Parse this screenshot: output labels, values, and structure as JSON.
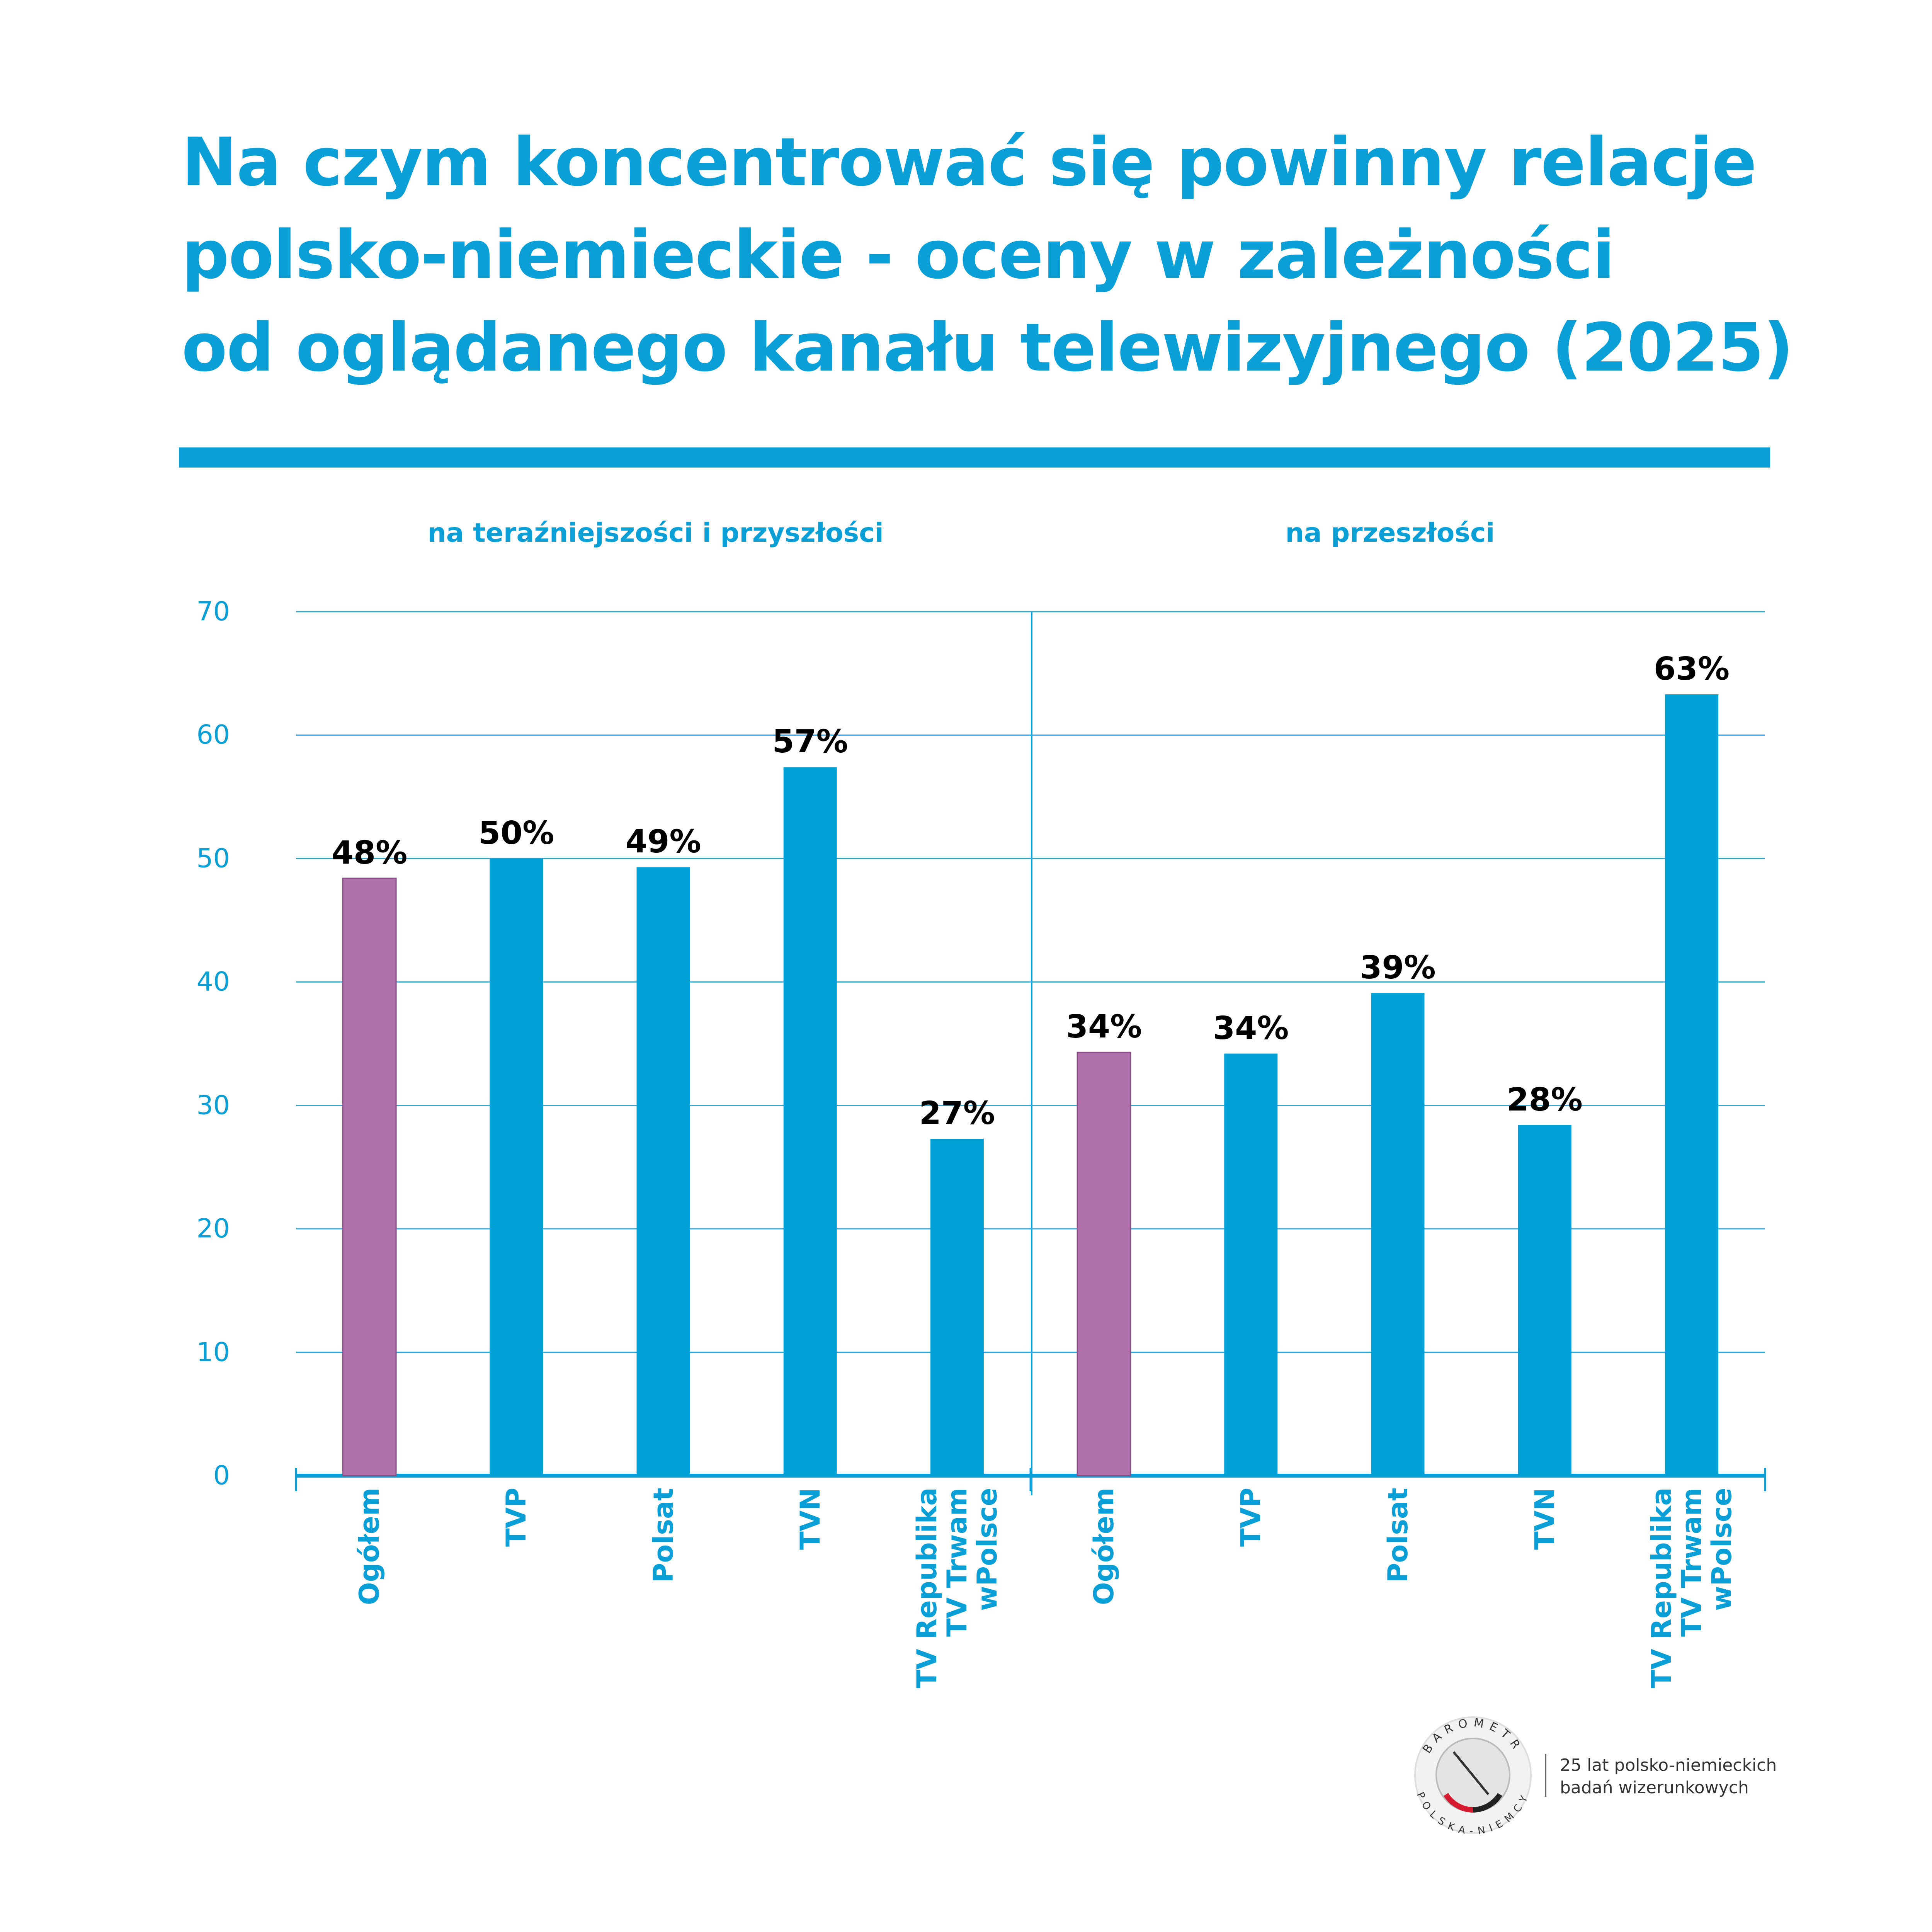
{
  "chart_data": {
    "type": "bar",
    "title": "Na czym koncentrować się powinny relacje\npolsko-niemieckie - oceny w zależności\nod oglądanego kanału telewizyjnego (2025)",
    "ylim": [
      0,
      70
    ],
    "yticks": [
      0,
      10,
      20,
      30,
      40,
      50,
      60,
      70
    ],
    "grid": true,
    "panels": [
      {
        "title": "na teraźniejszości i przyszłości",
        "categories": [
          "Ogółem",
          "TVP",
          "Polsat",
          "TVN",
          "TV Republika\nTV Trwam\nwPolsce"
        ],
        "values": [
          48.4,
          50,
          49.3,
          57.4,
          27.3
        ],
        "value_labels": [
          "48%",
          "50%",
          "49%",
          "57%",
          "27%"
        ],
        "colors": [
          "#b070ab",
          "#009fd6",
          "#009fd6",
          "#009fd6",
          "#009fd6"
        ]
      },
      {
        "title": "na przeszłości",
        "categories": [
          "Ogółem",
          "TVP",
          "Polsat",
          "TVN",
          "TV Republika\nTV Trwam\nwPolsce"
        ],
        "values": [
          34.3,
          34.2,
          39.1,
          28.4,
          63.3
        ],
        "value_labels": [
          "34%",
          "34%",
          "39%",
          "28%",
          "63%"
        ],
        "colors": [
          "#b070ab",
          "#009fd6",
          "#009fd6",
          "#009fd6",
          "#009fd6"
        ]
      }
    ]
  },
  "footer": {
    "logo_top": "BAROMETR",
    "logo_bottom": "POLSKA-NIEMCY",
    "text": "25 lat polsko-niemieckich\nbadań wizerunkowych"
  }
}
